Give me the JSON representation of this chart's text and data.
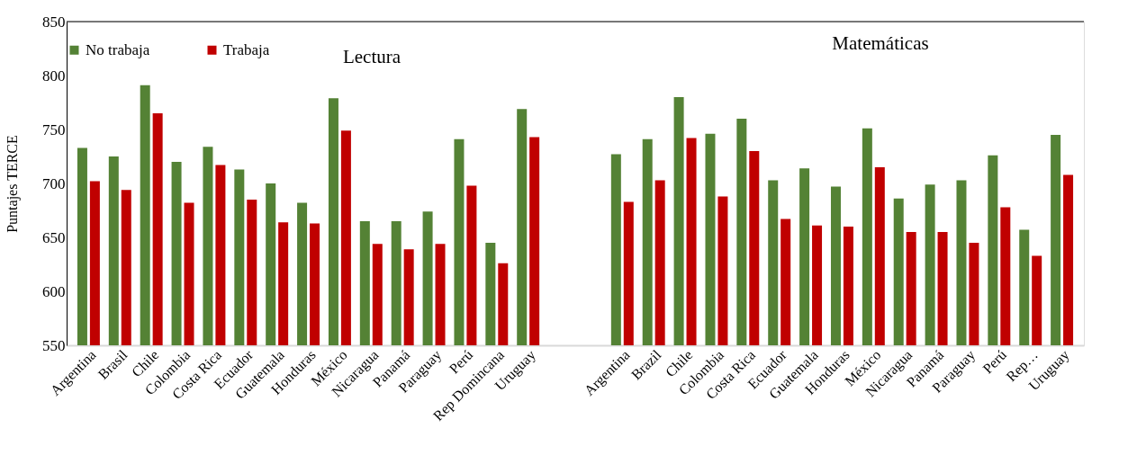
{
  "chart_data": {
    "type": "bar",
    "ylabel": "Puntajes TERCE",
    "categories": [
      "Argentina",
      "Brasil",
      "Chile",
      "Colombia",
      "Costa Rica",
      "Ecuador",
      "Guatemala",
      "Honduras",
      "México",
      "Nicaragua",
      "Panamá",
      "Paraguay",
      "Perú",
      "Rep Domincana",
      "Uruguay",
      null,
      null,
      "Argentina",
      "Brazil",
      "Chile",
      "Colombia",
      "Costa Rica",
      "Ecuador",
      "Guatemala",
      "Honduras",
      "México",
      "Nicaragua",
      "Panamá",
      "Paraguay",
      "Perú",
      "Rep…",
      "Uruguay"
    ],
    "series": [
      {
        "name": "No trabaja",
        "color": "#548235",
        "values": [
          733,
          725,
          791,
          720,
          734,
          713,
          700,
          682,
          779,
          665,
          665,
          674,
          741,
          645,
          769,
          null,
          null,
          727,
          741,
          780,
          746,
          760,
          703,
          714,
          697,
          751,
          686,
          699,
          703,
          726,
          657,
          745
        ]
      },
      {
        "name": "Trabaja",
        "color": "#c00000",
        "values": [
          702,
          694,
          765,
          682,
          717,
          685,
          664,
          663,
          749,
          644,
          639,
          644,
          698,
          626,
          743,
          null,
          null,
          683,
          703,
          742,
          688,
          730,
          667,
          661,
          660,
          715,
          655,
          655,
          645,
          678,
          633,
          708
        ]
      }
    ],
    "annotations": [
      "Lectura",
      "Matemáticas"
    ],
    "ylim": [
      550,
      850
    ],
    "yticks": [
      550,
      600,
      650,
      700,
      750,
      800,
      850
    ],
    "grid": false,
    "legend": "top"
  }
}
